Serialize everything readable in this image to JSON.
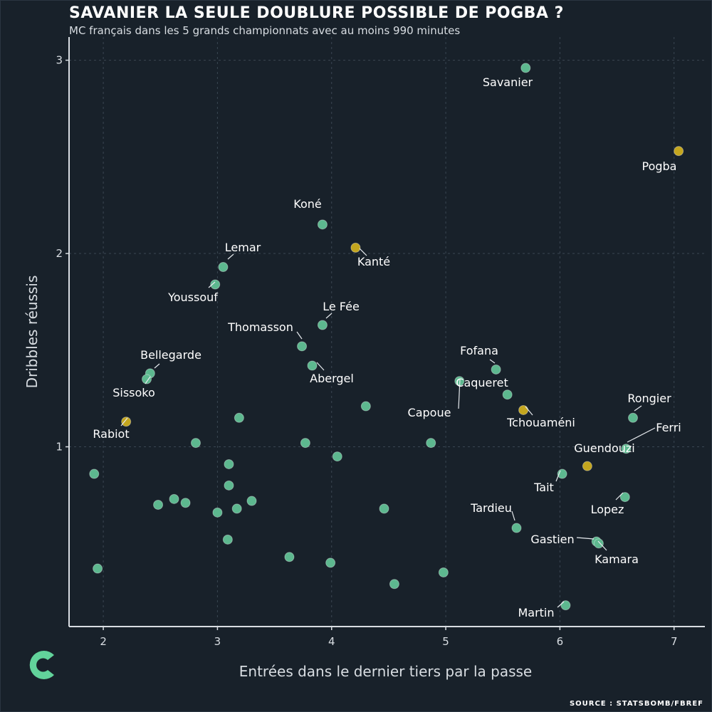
{
  "title": "SAVANIER LA SEULE DOUBLURE POSSIBLE DE POGBA ?",
  "subtitle": "MC français dans les 5 grands championnats avec au moins 990 minutes",
  "source": "SOURCE : STATSBOMB/FBREF",
  "colors": {
    "background": "#18212a",
    "point_default": "#5db88f",
    "point_highlight": "#c4a61e",
    "text": "#ffffff",
    "axis": "#d8dde2",
    "grid": "#3a4652",
    "logo": "#62d39b"
  },
  "icons": {
    "logo": "brand-c-icon"
  },
  "chart_data": {
    "type": "scatter",
    "title": "SAVANIER LA SEULE DOUBLURE POSSIBLE DE POGBA ?",
    "xlabel": "Entrées dans le dernier tiers par la passe",
    "ylabel": "Dribbles réussis",
    "xlim": [
      1.7,
      7.27
    ],
    "ylim": [
      0.07,
      3.12
    ],
    "xticks": [
      2,
      3,
      4,
      5,
      6,
      7
    ],
    "yticks": [
      1,
      2,
      3
    ],
    "grid": true,
    "points": [
      {
        "label": "Savanier",
        "x": 5.7,
        "y": 2.96,
        "highlight": false
      },
      {
        "label": "Pogba",
        "x": 7.04,
        "y": 2.53,
        "highlight": true
      },
      {
        "label": "Koné",
        "x": 3.92,
        "y": 2.15,
        "highlight": false
      },
      {
        "label": "Kanté",
        "x": 4.21,
        "y": 2.03,
        "highlight": true
      },
      {
        "label": "Lemar",
        "x": 3.05,
        "y": 1.93,
        "highlight": false
      },
      {
        "label": "Youssouf",
        "x": 2.98,
        "y": 1.84,
        "highlight": false
      },
      {
        "label": "Le Fée",
        "x": 3.92,
        "y": 1.63,
        "highlight": false
      },
      {
        "label": "Thomasson",
        "x": 3.74,
        "y": 1.52,
        "highlight": false
      },
      {
        "label": "Abergel",
        "x": 3.83,
        "y": 1.42,
        "highlight": false
      },
      {
        "label": "Bellegarde",
        "x": 2.41,
        "y": 1.38,
        "highlight": false
      },
      {
        "label": "Sissoko",
        "x": 2.38,
        "y": 1.35,
        "highlight": false
      },
      {
        "label": "Fofana",
        "x": 5.44,
        "y": 1.4,
        "highlight": false
      },
      {
        "label": "Capoue",
        "x": 5.12,
        "y": 1.34,
        "highlight": false
      },
      {
        "label": "Caqueret",
        "x": 5.54,
        "y": 1.27,
        "highlight": false
      },
      {
        "label": "Tchouaméni",
        "x": 5.68,
        "y": 1.19,
        "highlight": true
      },
      {
        "label": "Rongier",
        "x": 6.64,
        "y": 1.15,
        "highlight": false
      },
      {
        "label": "Rabiot",
        "x": 2.2,
        "y": 1.13,
        "highlight": true
      },
      {
        "label": "Ferri",
        "x": 6.58,
        "y": 0.99,
        "highlight": false
      },
      {
        "label": "Guendouzi",
        "x": 6.24,
        "y": 0.9,
        "highlight": true
      },
      {
        "label": "Tait",
        "x": 6.02,
        "y": 0.86,
        "highlight": false
      },
      {
        "label": "Lopez",
        "x": 6.57,
        "y": 0.74,
        "highlight": false
      },
      {
        "label": "Tardieu",
        "x": 5.62,
        "y": 0.58,
        "highlight": false
      },
      {
        "label": "Gastien",
        "x": 6.32,
        "y": 0.51,
        "highlight": false
      },
      {
        "label": "Kamara",
        "x": 6.34,
        "y": 0.5,
        "highlight": false
      },
      {
        "label": "Martin",
        "x": 6.05,
        "y": 0.18,
        "highlight": false
      },
      {
        "label": "",
        "x": 4.3,
        "y": 1.21,
        "highlight": false
      },
      {
        "label": "",
        "x": 3.19,
        "y": 1.15,
        "highlight": false
      },
      {
        "label": "",
        "x": 2.81,
        "y": 1.02,
        "highlight": false
      },
      {
        "label": "",
        "x": 3.77,
        "y": 1.02,
        "highlight": false
      },
      {
        "label": "",
        "x": 4.87,
        "y": 1.02,
        "highlight": false
      },
      {
        "label": "",
        "x": 4.05,
        "y": 0.95,
        "highlight": false
      },
      {
        "label": "",
        "x": 3.1,
        "y": 0.91,
        "highlight": false
      },
      {
        "label": "",
        "x": 1.92,
        "y": 0.86,
        "highlight": false
      },
      {
        "label": "",
        "x": 3.1,
        "y": 0.8,
        "highlight": false
      },
      {
        "label": "",
        "x": 2.62,
        "y": 0.73,
        "highlight": false
      },
      {
        "label": "",
        "x": 2.72,
        "y": 0.71,
        "highlight": false
      },
      {
        "label": "",
        "x": 3.3,
        "y": 0.72,
        "highlight": false
      },
      {
        "label": "",
        "x": 2.48,
        "y": 0.7,
        "highlight": false
      },
      {
        "label": "",
        "x": 3.17,
        "y": 0.68,
        "highlight": false
      },
      {
        "label": "",
        "x": 3.0,
        "y": 0.66,
        "highlight": false
      },
      {
        "label": "",
        "x": 4.46,
        "y": 0.68,
        "highlight": false
      },
      {
        "label": "",
        "x": 3.09,
        "y": 0.52,
        "highlight": false
      },
      {
        "label": "",
        "x": 3.63,
        "y": 0.43,
        "highlight": false
      },
      {
        "label": "",
        "x": 3.99,
        "y": 0.4,
        "highlight": false
      },
      {
        "label": "",
        "x": 1.95,
        "y": 0.37,
        "highlight": false
      },
      {
        "label": "",
        "x": 4.98,
        "y": 0.35,
        "highlight": false
      },
      {
        "label": "",
        "x": 4.55,
        "y": 0.29,
        "highlight": false
      }
    ]
  }
}
